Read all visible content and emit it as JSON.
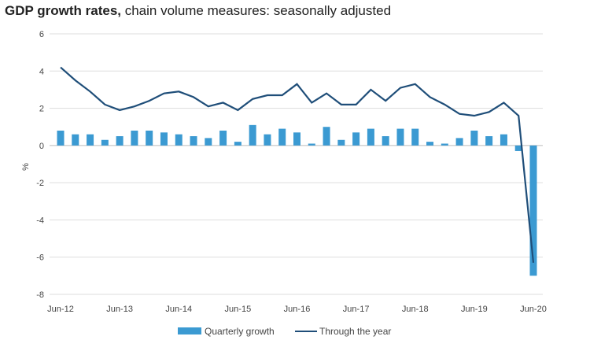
{
  "chart_data": {
    "type": "bar",
    "title_bold": "GDP growth rates,",
    "title_rest": " chain volume measures: seasonally adjusted",
    "xlabel": "",
    "ylabel": "%",
    "ylim": [
      -8,
      6
    ],
    "yticks": [
      6,
      4,
      2,
      0,
      -2,
      -4,
      -6,
      -8
    ],
    "xtick_labels": [
      "Jun-12",
      "Jun-13",
      "Jun-14",
      "Jun-15",
      "Jun-16",
      "Jun-17",
      "Jun-18",
      "Jun-19",
      "Jun-20"
    ],
    "grid": true,
    "legend_position": "bottom",
    "series": [
      {
        "name": "Quarterly growth",
        "type": "bar",
        "color": "#3b9ad2",
        "values": [
          0.8,
          0.6,
          0.6,
          0.3,
          0.5,
          0.8,
          0.8,
          0.7,
          0.6,
          0.5,
          0.4,
          0.8,
          0.2,
          1.1,
          0.6,
          0.9,
          0.7,
          0.1,
          1.0,
          0.3,
          0.7,
          0.9,
          0.5,
          0.9,
          0.9,
          0.2,
          0.1,
          0.4,
          0.8,
          0.5,
          0.6,
          -0.3,
          -7.0
        ]
      },
      {
        "name": "Through the year",
        "type": "line",
        "color": "#1f4e79",
        "values": [
          4.2,
          3.5,
          2.9,
          2.2,
          1.9,
          2.1,
          2.4,
          2.8,
          2.9,
          2.6,
          2.1,
          2.3,
          1.9,
          2.5,
          2.7,
          2.7,
          3.3,
          2.3,
          2.8,
          2.2,
          2.2,
          3.0,
          2.4,
          3.1,
          3.3,
          2.6,
          2.2,
          1.7,
          1.6,
          1.8,
          2.3,
          1.6,
          -6.3
        ]
      }
    ]
  }
}
